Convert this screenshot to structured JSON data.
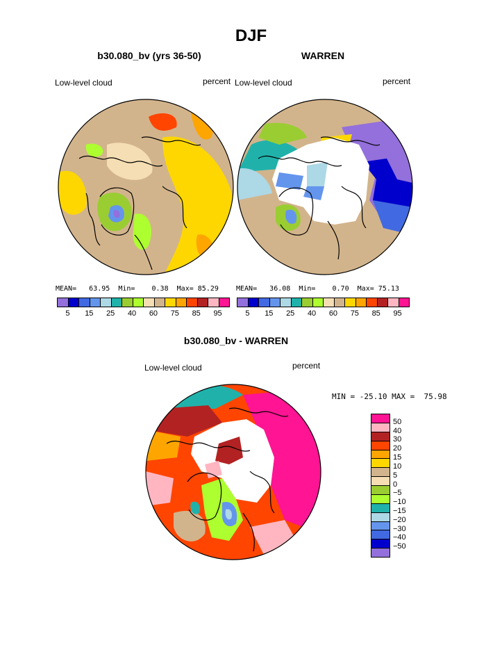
{
  "page": {
    "title": "DJF"
  },
  "panels": [
    {
      "title": "b30.080_bv (yrs 36-50)",
      "variable_label": "Low-level cloud",
      "units_label": "percent",
      "stats": {
        "mean_label": "MEAN=",
        "mean": "63.95",
        "min_label": "Min=",
        "min": "0.38",
        "max_label": "Max=",
        "max": "85.29"
      }
    },
    {
      "title": "WARREN",
      "variable_label": "Low-level cloud",
      "units_label": "percent",
      "stats": {
        "mean_label": "MEAN=",
        "mean": "36.08",
        "min_label": "Min=",
        "min": "0.70",
        "max_label": "Max=",
        "max": "75.13"
      }
    },
    {
      "title": "b30.080_bv - WARREN",
      "variable_label": "Low-level cloud",
      "units_label": "percent",
      "stats_line": "MIN = -25.10 MAX =  75.98"
    }
  ],
  "colorbar_abs": {
    "colors": [
      "#9370db",
      "#0000cd",
      "#4169e1",
      "#6495ed",
      "#add8e6",
      "#20b2aa",
      "#9acd32",
      "#adff2f",
      "#f5deb3",
      "#d2b48c",
      "#ffd700",
      "#ffa500",
      "#ff4500",
      "#b22222",
      "#ffb6c1",
      "#ff1493"
    ],
    "tick_labels": [
      "5",
      "15",
      "25",
      "40",
      "60",
      "75",
      "85",
      "95"
    ]
  },
  "colorbar_diff": {
    "colors": [
      "#ff1493",
      "#ffb6c1",
      "#b22222",
      "#ff4500",
      "#ffa500",
      "#ffd700",
      "#d2b48c",
      "#f5deb3",
      "#9acd32",
      "#adff2f",
      "#20b2aa",
      "#add8e6",
      "#6495ed",
      "#4169e1",
      "#0000cd",
      "#9370db"
    ],
    "tick_labels": [
      "50",
      "40",
      "30",
      "20",
      "15",
      "10",
      "5",
      "0",
      "-5",
      "-10",
      "-15",
      "-20",
      "-30",
      "-40",
      "-50"
    ]
  }
}
